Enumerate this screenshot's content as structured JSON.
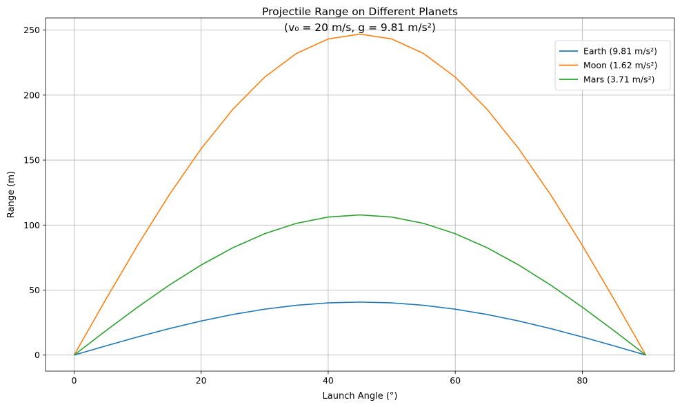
{
  "chart_data": {
    "type": "line",
    "title": "Projectile Range on Different Planets",
    "subtitle": "(v₀ = 20 m/s, g = 9.81 m/s²)",
    "xlabel": "Launch Angle (°)",
    "ylabel": "Range (m)",
    "xlim": [
      -4.5,
      94.5
    ],
    "ylim": [
      -12.35,
      259.35
    ],
    "x_ticks": [
      0,
      20,
      40,
      60,
      80
    ],
    "y_ticks": [
      0,
      50,
      100,
      150,
      200,
      250
    ],
    "grid": true,
    "legend_position": "top-right",
    "x": [
      0,
      5,
      10,
      15,
      20,
      25,
      30,
      35,
      40,
      45,
      50,
      55,
      60,
      65,
      70,
      75,
      80,
      85,
      90
    ],
    "series": [
      {
        "name": "Earth (9.81 m/s²)",
        "color": "#1f77b4",
        "values": [
          0,
          7.08,
          13.95,
          20.39,
          26.21,
          31.24,
          35.31,
          38.32,
          40.16,
          40.77,
          40.16,
          38.32,
          35.31,
          31.24,
          26.21,
          20.39,
          13.95,
          7.08,
          0
        ]
      },
      {
        "name": "Moon (1.62 m/s²)",
        "color": "#ff7f0e",
        "values": [
          0,
          42.88,
          84.45,
          123.46,
          158.71,
          189.15,
          213.84,
          232.04,
          243.17,
          246.91,
          243.17,
          232.04,
          213.84,
          189.15,
          158.71,
          123.46,
          84.45,
          42.88,
          0
        ]
      },
      {
        "name": "Mars (3.71 m/s²)",
        "color": "#2ca02c",
        "values": [
          0,
          18.72,
          36.87,
          53.91,
          69.3,
          82.59,
          93.37,
          101.32,
          106.18,
          107.82,
          106.18,
          101.32,
          93.37,
          82.59,
          69.3,
          53.91,
          36.87,
          18.72,
          0
        ]
      }
    ]
  }
}
